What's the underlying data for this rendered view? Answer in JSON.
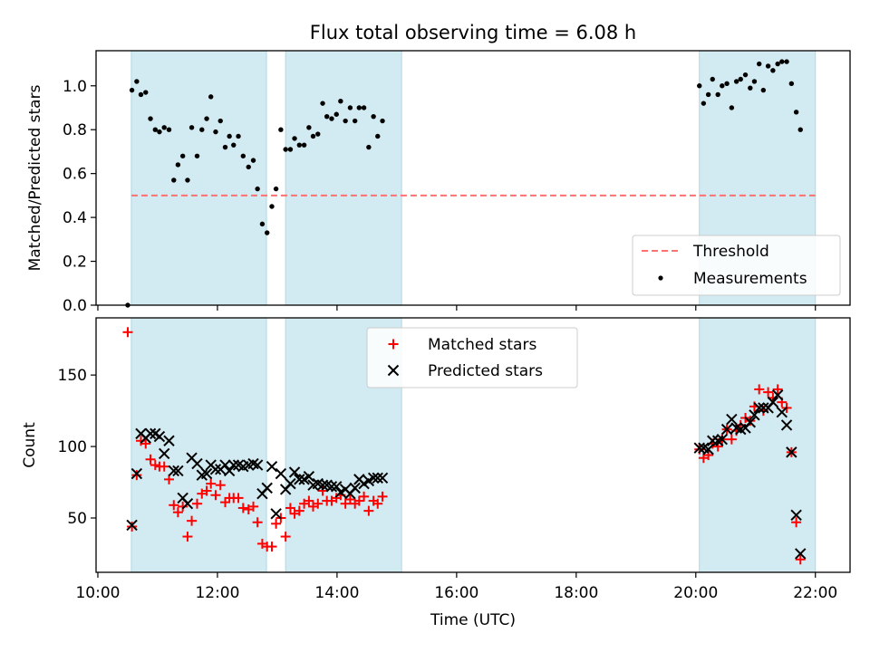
{
  "chart_data": {
    "type": "scatter",
    "title": "Flux total observing time = 6.08 h",
    "xlabel": "Time (UTC)",
    "x_unit": "hours UTC",
    "xlim": [
      9.97,
      22.58
    ],
    "x_ticks": [
      "10:00",
      "12:00",
      "14:00",
      "16:00",
      "18:00",
      "20:00",
      "22:00"
    ],
    "shaded_intervals": [
      [
        10.56,
        12.82
      ],
      [
        13.14,
        15.08
      ],
      [
        20.06,
        22.0
      ]
    ],
    "shade_color": "#add8e6",
    "panels": [
      {
        "ylabel": "Matched/Predicted stars",
        "ylim": [
          0,
          1.16
        ],
        "y_ticks": [
          "0.0",
          "0.2",
          "0.4",
          "0.6",
          "0.8",
          "1.0"
        ],
        "legend": {
          "placement": "lower right",
          "entries": [
            "Threshold",
            "Measurements"
          ]
        },
        "threshold": {
          "name": "Threshold",
          "value": 0.5,
          "x_range": [
            10.56,
            22.0
          ],
          "color": "#ff7070",
          "style": "dashed"
        },
        "series": [
          {
            "name": "Measurements",
            "marker": "dot",
            "color": "#000000",
            "points": [
              [
                10.5,
                0.0
              ],
              [
                10.57,
                0.98
              ],
              [
                10.65,
                1.02
              ],
              [
                10.72,
                0.96
              ],
              [
                10.8,
                0.97
              ],
              [
                10.88,
                0.85
              ],
              [
                10.96,
                0.8
              ],
              [
                11.03,
                0.79
              ],
              [
                11.11,
                0.81
              ],
              [
                11.19,
                0.8
              ],
              [
                11.27,
                0.57
              ],
              [
                11.34,
                0.64
              ],
              [
                11.42,
                0.68
              ],
              [
                11.5,
                0.57
              ],
              [
                11.57,
                0.81
              ],
              [
                11.66,
                0.68
              ],
              [
                11.74,
                0.8
              ],
              [
                11.82,
                0.85
              ],
              [
                11.89,
                0.95
              ],
              [
                11.97,
                0.79
              ],
              [
                12.05,
                0.84
              ],
              [
                12.13,
                0.72
              ],
              [
                12.2,
                0.77
              ],
              [
                12.27,
                0.73
              ],
              [
                12.35,
                0.77
              ],
              [
                12.43,
                0.68
              ],
              [
                12.52,
                0.63
              ],
              [
                12.6,
                0.66
              ],
              [
                12.67,
                0.53
              ],
              [
                12.75,
                0.37
              ],
              [
                12.83,
                0.33
              ],
              [
                12.91,
                0.45
              ],
              [
                12.98,
                0.53
              ],
              [
                13.06,
                0.8
              ],
              [
                13.14,
                0.71
              ],
              [
                13.22,
                0.71
              ],
              [
                13.29,
                0.76
              ],
              [
                13.37,
                0.73
              ],
              [
                13.45,
                0.73
              ],
              [
                13.53,
                0.81
              ],
              [
                13.6,
                0.77
              ],
              [
                13.68,
                0.78
              ],
              [
                13.76,
                0.92
              ],
              [
                13.83,
                0.86
              ],
              [
                13.91,
                0.85
              ],
              [
                13.99,
                0.87
              ],
              [
                14.06,
                0.93
              ],
              [
                14.14,
                0.84
              ],
              [
                14.22,
                0.9
              ],
              [
                14.3,
                0.84
              ],
              [
                14.37,
                0.9
              ],
              [
                14.45,
                0.9
              ],
              [
                14.53,
                0.72
              ],
              [
                14.61,
                0.86
              ],
              [
                14.68,
                0.77
              ],
              [
                14.76,
                0.84
              ],
              [
                20.06,
                1.0
              ],
              [
                20.13,
                0.92
              ],
              [
                20.21,
                0.96
              ],
              [
                20.28,
                1.03
              ],
              [
                20.37,
                0.96
              ],
              [
                20.44,
                1.0
              ],
              [
                20.52,
                1.01
              ],
              [
                20.6,
                0.9
              ],
              [
                20.68,
                1.02
              ],
              [
                20.75,
                1.03
              ],
              [
                20.83,
                1.05
              ],
              [
                20.91,
                0.99
              ],
              [
                20.98,
                1.02
              ],
              [
                21.06,
                1.1
              ],
              [
                21.13,
                0.98
              ],
              [
                21.21,
                1.09
              ],
              [
                21.29,
                1.07
              ],
              [
                21.37,
                1.1
              ],
              [
                21.44,
                1.11
              ],
              [
                21.52,
                1.11
              ],
              [
                21.6,
                1.01
              ],
              [
                21.68,
                0.88
              ],
              [
                21.75,
                0.8
              ]
            ]
          }
        ]
      },
      {
        "ylabel": "Count",
        "ylim": [
          12,
          190
        ],
        "y_ticks": [
          "50",
          "100",
          "150"
        ],
        "legend": {
          "placement": "upper center",
          "entries": [
            "Matched stars",
            "Predicted stars"
          ]
        },
        "series": [
          {
            "name": "Matched stars",
            "marker": "plus",
            "color": "#ff0000",
            "points": [
              [
                10.5,
                180
              ],
              [
                10.57,
                44
              ],
              [
                10.65,
                80
              ],
              [
                10.72,
                104
              ],
              [
                10.8,
                102
              ],
              [
                10.88,
                91
              ],
              [
                10.96,
                87
              ],
              [
                11.03,
                86
              ],
              [
                11.11,
                86
              ],
              [
                11.19,
                77
              ],
              [
                11.27,
                59
              ],
              [
                11.34,
                54
              ],
              [
                11.42,
                58
              ],
              [
                11.5,
                37
              ],
              [
                11.57,
                48
              ],
              [
                11.66,
                60
              ],
              [
                11.74,
                67
              ],
              [
                11.82,
                69
              ],
              [
                11.89,
                74
              ],
              [
                11.97,
                66
              ],
              [
                12.05,
                73
              ],
              [
                12.13,
                61
              ],
              [
                12.2,
                64
              ],
              [
                12.27,
                64
              ],
              [
                12.35,
                64
              ],
              [
                12.43,
                57
              ],
              [
                12.52,
                56
              ],
              [
                12.6,
                58
              ],
              [
                12.67,
                47
              ],
              [
                12.75,
                32
              ],
              [
                12.83,
                30
              ],
              [
                12.91,
                30
              ],
              [
                12.98,
                46
              ],
              [
                13.06,
                50
              ],
              [
                13.14,
                37
              ],
              [
                13.22,
                57
              ],
              [
                13.29,
                53
              ],
              [
                13.37,
                55
              ],
              [
                13.45,
                60
              ],
              [
                13.53,
                62
              ],
              [
                13.6,
                58
              ],
              [
                13.68,
                60
              ],
              [
                13.76,
                69
              ],
              [
                13.83,
                62
              ],
              [
                13.91,
                62
              ],
              [
                13.99,
                64
              ],
              [
                14.06,
                66
              ],
              [
                14.14,
                60
              ],
              [
                14.22,
                63
              ],
              [
                14.3,
                60
              ],
              [
                14.37,
                62
              ],
              [
                14.45,
                65
              ],
              [
                14.53,
                55
              ],
              [
                14.61,
                62
              ],
              [
                14.68,
                60
              ],
              [
                14.76,
                65
              ],
              [
                20.06,
                98
              ],
              [
                20.13,
                92
              ],
              [
                20.21,
                94
              ],
              [
                20.28,
                102
              ],
              [
                20.37,
                100
              ],
              [
                20.44,
                105
              ],
              [
                20.52,
                112
              ],
              [
                20.6,
                105
              ],
              [
                20.68,
                111
              ],
              [
                20.75,
                115
              ],
              [
                20.83,
                120
              ],
              [
                20.91,
                118
              ],
              [
                20.98,
                128
              ],
              [
                21.06,
                140
              ],
              [
                21.13,
                125
              ],
              [
                21.21,
                138
              ],
              [
                21.29,
                134
              ],
              [
                21.37,
                140
              ],
              [
                21.44,
                131
              ],
              [
                21.52,
                127
              ],
              [
                21.6,
                96
              ],
              [
                21.68,
                47
              ],
              [
                21.75,
                21
              ]
            ]
          },
          {
            "name": "Predicted stars",
            "marker": "x",
            "color": "#000000",
            "points": [
              [
                10.57,
                45
              ],
              [
                10.65,
                81
              ],
              [
                10.72,
                109
              ],
              [
                10.8,
                106
              ],
              [
                10.88,
                109
              ],
              [
                10.96,
                109
              ],
              [
                11.03,
                107
              ],
              [
                11.11,
                95
              ],
              [
                11.19,
                104
              ],
              [
                11.27,
                83
              ],
              [
                11.34,
                83
              ],
              [
                11.42,
                64
              ],
              [
                11.5,
                60
              ],
              [
                11.57,
                92
              ],
              [
                11.66,
                88
              ],
              [
                11.74,
                80
              ],
              [
                11.82,
                81
              ],
              [
                11.89,
                87
              ],
              [
                11.97,
                84
              ],
              [
                12.05,
                84
              ],
              [
                12.13,
                87
              ],
              [
                12.2,
                83
              ],
              [
                12.27,
                87
              ],
              [
                12.35,
                87
              ],
              [
                12.43,
                86
              ],
              [
                12.52,
                87
              ],
              [
                12.6,
                88
              ],
              [
                12.67,
                87
              ],
              [
                12.75,
                67
              ],
              [
                12.83,
                71
              ],
              [
                12.91,
                86
              ],
              [
                12.98,
                53
              ],
              [
                13.06,
                81
              ],
              [
                13.14,
                70
              ],
              [
                13.22,
                74
              ],
              [
                13.29,
                82
              ],
              [
                13.37,
                77
              ],
              [
                13.45,
                77
              ],
              [
                13.53,
                79
              ],
              [
                13.6,
                73
              ],
              [
                13.68,
                74
              ],
              [
                13.76,
                73
              ],
              [
                13.83,
                73
              ],
              [
                13.91,
                72
              ],
              [
                13.99,
                72
              ],
              [
                14.06,
                68
              ],
              [
                14.14,
                70
              ],
              [
                14.22,
                67
              ],
              [
                14.3,
                71
              ],
              [
                14.37,
                77
              ],
              [
                14.45,
                74
              ],
              [
                14.53,
                76
              ],
              [
                14.61,
                78
              ],
              [
                14.68,
                78
              ],
              [
                14.76,
                78
              ],
              [
                20.06,
                99
              ],
              [
                20.13,
                99
              ],
              [
                20.21,
                98
              ],
              [
                20.28,
                104
              ],
              [
                20.37,
                104
              ],
              [
                20.44,
                105
              ],
              [
                20.52,
                112
              ],
              [
                20.6,
                119
              ],
              [
                20.68,
                113
              ],
              [
                20.75,
                112
              ],
              [
                20.83,
                113
              ],
              [
                20.91,
                117
              ],
              [
                20.98,
                122
              ],
              [
                21.06,
                127
              ],
              [
                21.13,
                127
              ],
              [
                21.21,
                127
              ],
              [
                21.29,
                131
              ],
              [
                21.37,
                136
              ],
              [
                21.44,
                124
              ],
              [
                21.52,
                115
              ],
              [
                21.6,
                96
              ],
              [
                21.68,
                52
              ],
              [
                21.75,
                25
              ]
            ]
          }
        ]
      }
    ]
  }
}
